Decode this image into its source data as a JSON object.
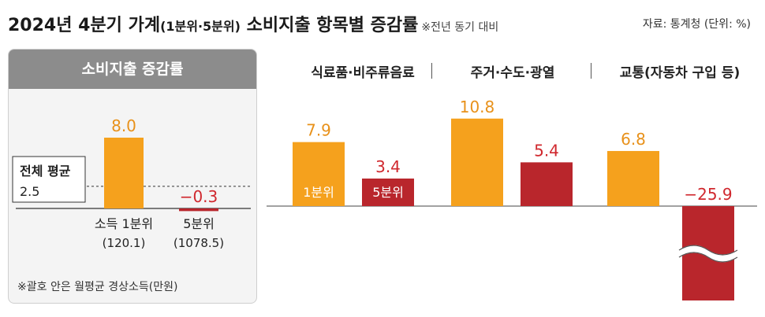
{
  "header": {
    "title_main": "2024년 4분기 가계",
    "title_paren": "(1분위·5분위)",
    "title_rest": "소비지출 항목별 증감률",
    "title_note": "※전년 동기 대비",
    "source": "자료: 통계청 (단위: %)"
  },
  "left_panel": {
    "header": "소비지출 증감률",
    "avg_label_1": "전체 평균",
    "avg_label_2": "2.5",
    "footnote": "※괄호 안은 월평균 경상소득(만원)"
  },
  "colors": {
    "q1": "#f5a11d",
    "q5": "#b9262c",
    "q1_text": "#e8911a",
    "q5_text": "#d0282e",
    "panel_header": "#8c8c8c"
  },
  "chart_data": [
    {
      "type": "bar",
      "title": "소비지출 증감률",
      "categories": [
        "소득 1분위",
        "5분위"
      ],
      "category_notes": [
        "(120.1)",
        "(1078.5)"
      ],
      "values": [
        8.0,
        -0.3
      ],
      "value_labels": [
        "8.0",
        "−0.3"
      ],
      "reference_line": {
        "label": "전체 평균",
        "value": 2.5
      }
    },
    {
      "type": "bar",
      "categories": [
        "식료품·비주류음료",
        "주거·수도·광열",
        "교통(자동차 구입 등)"
      ],
      "series": [
        {
          "name": "1분위",
          "values": [
            7.9,
            10.8,
            6.8
          ],
          "labels": [
            "7.9",
            "10.8",
            "6.8"
          ]
        },
        {
          "name": "5분위",
          "values": [
            3.4,
            5.4,
            -25.9
          ],
          "labels": [
            "3.4",
            "5.4",
            "−25.9"
          ]
        }
      ],
      "axis_break": "transport 5분위 bar is truncated with a wavy break"
    }
  ]
}
